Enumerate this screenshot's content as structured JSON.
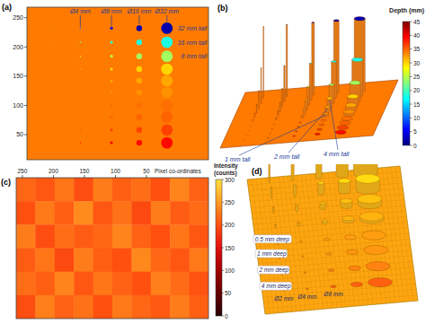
{
  "chart_data": [
    {
      "type": "heatmap",
      "title": "(a)",
      "xlim": [
        262,
        0
      ],
      "ylim": [
        7,
        268
      ],
      "yticks": [
        50,
        100,
        150,
        200,
        250
      ],
      "tick_labels": "y",
      "background": 34,
      "columns": {
        "x": [
          225,
          185,
          140,
          100,
          60
        ],
        "diameter": [
          2,
          4,
          8,
          16,
          32
        ],
        "labels": [
          null,
          "Ø4 mm",
          "Ø8 mm",
          "Ø16 mm",
          "Ø32 mm"
        ]
      },
      "rows": {
        "y": [
          232,
          208,
          184,
          162,
          142,
          122,
          100,
          80,
          58,
          36
        ],
        "height": [
          32,
          16,
          8,
          4,
          2,
          1,
          -0.5,
          -1,
          -2,
          -4
        ],
        "labels": [
          "32 mm tall",
          "16 mm tall",
          "8 mm tall",
          null,
          null,
          null,
          null,
          null,
          null,
          null
        ]
      },
      "cells": [
        [
          22,
          10,
          4,
          2,
          2
        ],
        [
          28,
          22,
          19,
          18,
          18
        ],
        [
          31,
          28,
          25,
          24,
          24
        ],
        [
          33,
          31,
          30,
          30,
          30
        ],
        [
          34,
          33,
          32,
          32,
          32
        ],
        [
          34,
          34,
          33,
          33,
          33
        ],
        [
          34,
          34,
          34.5,
          34.5,
          34.5
        ],
        [
          34.5,
          35,
          35,
          35,
          35
        ],
        [
          35,
          36,
          36.5,
          36.5,
          36.5
        ],
        [
          36,
          38,
          39,
          39,
          39
        ]
      ]
    },
    {
      "type": "surface3d",
      "title": "(b)",
      "row_labels": [
        null,
        null,
        null,
        "4 mm tall",
        "2 mm tall",
        "1 mm tall",
        null,
        null,
        null,
        null
      ],
      "colorbar": {
        "label": "Depth (mm)",
        "range": [
          0,
          45
        ],
        "ticks": [
          0,
          5,
          10,
          15,
          20,
          25,
          30,
          35,
          40,
          45
        ]
      }
    },
    {
      "type": "heatmap",
      "title": "(c)",
      "x_label": "Pixel co-ordinates",
      "xlim": [
        260,
        -50
      ],
      "xticks": [
        250,
        200,
        150,
        100,
        50
      ],
      "tick_labels": "x",
      "cells": [
        [
          215,
          205,
          225,
          198,
          230,
          210,
          220,
          200,
          235,
          212
        ],
        [
          200,
          228,
          210,
          240,
          205,
          222,
          195,
          230,
          208,
          218
        ],
        [
          230,
          198,
          220,
          208,
          215,
          235,
          212,
          200,
          225,
          205
        ],
        [
          208,
          225,
          195,
          230,
          210,
          200,
          238,
          215,
          205,
          228
        ],
        [
          220,
          210,
          235,
          205,
          225,
          212,
          200,
          232,
          218,
          202
        ],
        [
          198,
          232,
          212,
          222,
          200,
          228,
          215,
          206,
          230,
          210
        ]
      ],
      "colorbar": {
        "label": "Intensity (counts)",
        "range": [
          0,
          300
        ],
        "ticks": [
          0,
          50,
          100,
          150,
          200,
          250,
          300
        ]
      }
    },
    {
      "type": "surface3d",
      "title": "(d)",
      "row_labels": [
        null,
        null,
        null,
        null,
        null,
        null,
        "0.5 mm deep",
        "1 mm deep",
        "2 mm deep",
        "4 mm deep"
      ],
      "column_labels": [
        "Ø2 mm",
        "Ø4 mm",
        "Ø8 mm",
        null,
        null
      ]
    }
  ]
}
